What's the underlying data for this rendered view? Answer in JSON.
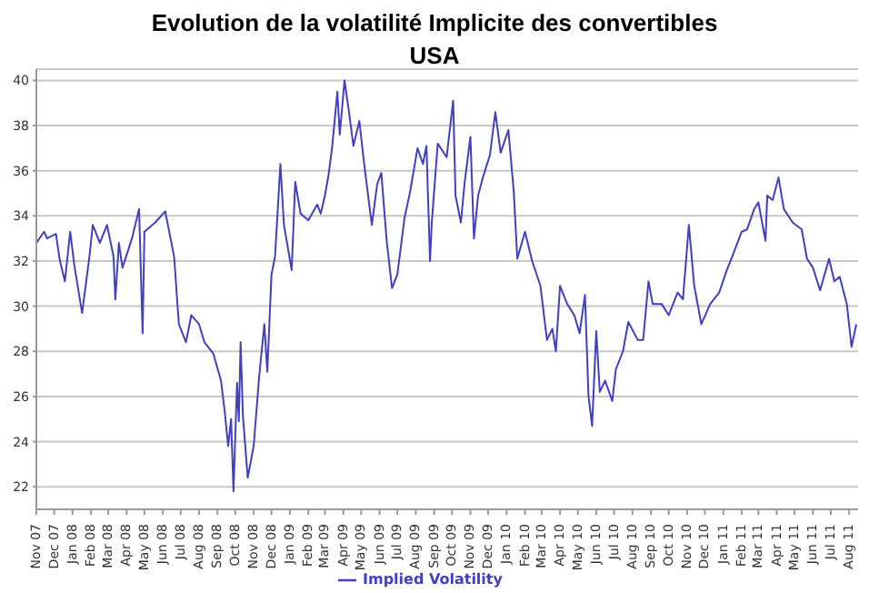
{
  "chart_data": {
    "type": "line",
    "title": "Evolution de la volatilité Implicite des convertibles",
    "subtitle": "USA",
    "xlim": [
      "2007-11-01",
      "2011-08-16"
    ],
    "ylim": [
      21,
      40.5
    ],
    "yticks": [
      22,
      24,
      26,
      28,
      30,
      32,
      34,
      36,
      38,
      40
    ],
    "xticks": [
      {
        "value": "2007-11-01",
        "label": "Nov 07"
      },
      {
        "value": "2007-12-01",
        "label": "Dec 07"
      },
      {
        "value": "2008-01-01",
        "label": "Jan 08"
      },
      {
        "value": "2008-02-01",
        "label": "Feb 08"
      },
      {
        "value": "2008-03-01",
        "label": "Mar 08"
      },
      {
        "value": "2008-04-01",
        "label": "Apr 08"
      },
      {
        "value": "2008-05-01",
        "label": "May 08"
      },
      {
        "value": "2008-06-01",
        "label": "Jun 08"
      },
      {
        "value": "2008-07-01",
        "label": "Jul 08"
      },
      {
        "value": "2008-08-01",
        "label": "Aug 08"
      },
      {
        "value": "2008-09-01",
        "label": "Sep 08"
      },
      {
        "value": "2008-10-01",
        "label": "Oct 08"
      },
      {
        "value": "2008-11-01",
        "label": "Nov 08"
      },
      {
        "value": "2008-12-01",
        "label": "Dec 08"
      },
      {
        "value": "2009-01-01",
        "label": "Jan 09"
      },
      {
        "value": "2009-02-01",
        "label": "Feb 09"
      },
      {
        "value": "2009-03-01",
        "label": "Mar 09"
      },
      {
        "value": "2009-04-01",
        "label": "Apr 09"
      },
      {
        "value": "2009-05-01",
        "label": "May 09"
      },
      {
        "value": "2009-06-01",
        "label": "Jun 09"
      },
      {
        "value": "2009-07-01",
        "label": "Jul 09"
      },
      {
        "value": "2009-08-01",
        "label": "Aug 09"
      },
      {
        "value": "2009-09-01",
        "label": "Sep 09"
      },
      {
        "value": "2009-10-01",
        "label": "Oct 09"
      },
      {
        "value": "2009-11-01",
        "label": "Nov 09"
      },
      {
        "value": "2009-12-01",
        "label": "Dec 09"
      },
      {
        "value": "2010-01-01",
        "label": "Jan 10"
      },
      {
        "value": "2010-02-01",
        "label": "Feb 10"
      },
      {
        "value": "2010-03-01",
        "label": "Mar 10"
      },
      {
        "value": "2010-04-01",
        "label": "Apr 10"
      },
      {
        "value": "2010-05-01",
        "label": "May 10"
      },
      {
        "value": "2010-06-01",
        "label": "Jun 10"
      },
      {
        "value": "2010-07-01",
        "label": "Jul 10"
      },
      {
        "value": "2010-08-01",
        "label": "Aug 10"
      },
      {
        "value": "2010-09-01",
        "label": "Sep 10"
      },
      {
        "value": "2010-10-01",
        "label": "Oct 10"
      },
      {
        "value": "2010-11-01",
        "label": "Nov 10"
      },
      {
        "value": "2010-12-01",
        "label": "Dec 10"
      },
      {
        "value": "2011-01-01",
        "label": "Jan 11"
      },
      {
        "value": "2011-02-01",
        "label": "Feb 11"
      },
      {
        "value": "2011-03-01",
        "label": "Mar 11"
      },
      {
        "value": "2011-04-01",
        "label": "Apr 11"
      },
      {
        "value": "2011-05-01",
        "label": "May 11"
      },
      {
        "value": "2011-06-01",
        "label": "Jun 11"
      },
      {
        "value": "2011-07-01",
        "label": "Jul 11"
      },
      {
        "value": "2011-08-01",
        "label": "Aug 11"
      }
    ],
    "grid": "y",
    "legend": "bottom",
    "marker": "none",
    "line_style": "solid",
    "series": [
      {
        "name": "Implied Volatility",
        "color": "#4040c0",
        "x": [
          "2007-11-01",
          "2007-11-14",
          "2007-11-19",
          "2007-12-04",
          "2007-12-10",
          "2007-12-19",
          "2007-12-28",
          "2008-01-04",
          "2008-01-17",
          "2008-01-29",
          "2008-02-04",
          "2008-02-16",
          "2008-02-28",
          "2008-03-10",
          "2008-03-13",
          "2008-03-19",
          "2008-03-25",
          "2008-04-10",
          "2008-04-22",
          "2008-04-28",
          "2008-05-01",
          "2008-05-19",
          "2008-06-05",
          "2008-06-20",
          "2008-06-28",
          "2008-07-01",
          "2008-07-10",
          "2008-07-19",
          "2008-08-01",
          "2008-08-10",
          "2008-08-25",
          "2008-09-07",
          "2008-09-13",
          "2008-09-19",
          "2008-09-24",
          "2008-09-28",
          "2008-10-04",
          "2008-10-07",
          "2008-10-10",
          "2008-10-14",
          "2008-10-22",
          "2008-11-01",
          "2008-11-10",
          "2008-11-19",
          "2008-11-24",
          "2008-12-01",
          "2008-12-07",
          "2008-12-16",
          "2008-12-22",
          "2009-01-04",
          "2009-01-10",
          "2009-01-19",
          "2009-02-01",
          "2009-02-16",
          "2009-02-22",
          "2009-03-01",
          "2009-03-07",
          "2009-03-13",
          "2009-03-22",
          "2009-03-26",
          "2009-04-03",
          "2009-04-10",
          "2009-04-18",
          "2009-04-28",
          "2009-05-07",
          "2009-05-19",
          "2009-05-28",
          "2009-06-04",
          "2009-06-13",
          "2009-06-22",
          "2009-07-01",
          "2009-07-13",
          "2009-07-22",
          "2009-08-04",
          "2009-08-13",
          "2009-08-19",
          "2009-08-25",
          "2009-08-28",
          "2009-09-07",
          "2009-09-22",
          "2009-10-03",
          "2009-10-07",
          "2009-10-16",
          "2009-10-22",
          "2009-11-01",
          "2009-11-07",
          "2009-11-14",
          "2009-11-22",
          "2009-12-04",
          "2009-12-13",
          "2009-12-22",
          "2010-01-04",
          "2010-01-13",
          "2010-01-19",
          "2010-02-01",
          "2010-02-13",
          "2010-02-27",
          "2010-03-10",
          "2010-03-19",
          "2010-03-25",
          "2010-04-01",
          "2010-04-13",
          "2010-04-25",
          "2010-05-04",
          "2010-05-13",
          "2010-05-19",
          "2010-05-25",
          "2010-06-01",
          "2010-06-07",
          "2010-06-16",
          "2010-06-28",
          "2010-07-04",
          "2010-07-16",
          "2010-07-25",
          "2010-08-10",
          "2010-08-19",
          "2010-08-28",
          "2010-09-04",
          "2010-09-19",
          "2010-10-01",
          "2010-10-16",
          "2010-10-25",
          "2010-11-04",
          "2010-11-13",
          "2010-11-25",
          "2010-12-10",
          "2010-12-25",
          "2011-01-07",
          "2011-01-16",
          "2011-02-01",
          "2011-02-10",
          "2011-02-22",
          "2011-03-01",
          "2011-03-13",
          "2011-03-16",
          "2011-03-25",
          "2011-04-04",
          "2011-04-13",
          "2011-04-28",
          "2011-05-13",
          "2011-05-22",
          "2011-06-01",
          "2011-06-13",
          "2011-06-28",
          "2011-07-07",
          "2011-07-16",
          "2011-07-28",
          "2011-08-05",
          "2011-08-13"
        ],
        "values": [
          32.8,
          33.3,
          33.0,
          33.2,
          32.1,
          31.1,
          33.3,
          31.8,
          29.7,
          32.1,
          33.6,
          32.8,
          33.6,
          32.2,
          30.3,
          32.8,
          31.7,
          33.0,
          34.3,
          28.8,
          33.3,
          33.7,
          34.2,
          32.2,
          29.2,
          29.0,
          28.4,
          29.6,
          29.2,
          28.4,
          27.9,
          26.7,
          25.4,
          23.8,
          25.0,
          21.8,
          26.6,
          24.9,
          28.4,
          25.1,
          22.4,
          23.8,
          26.8,
          29.2,
          27.1,
          31.4,
          32.2,
          36.3,
          33.6,
          31.6,
          35.5,
          34.1,
          33.8,
          34.5,
          34.1,
          34.9,
          35.8,
          37.0,
          39.5,
          37.6,
          40.0,
          38.7,
          37.1,
          38.2,
          36.1,
          33.6,
          35.4,
          35.9,
          32.9,
          30.8,
          31.4,
          33.9,
          35.0,
          37.0,
          36.3,
          37.1,
          32.0,
          33.7,
          37.2,
          36.6,
          39.1,
          34.9,
          33.7,
          35.4,
          37.5,
          33.0,
          34.9,
          35.7,
          36.7,
          38.6,
          36.8,
          37.8,
          35.1,
          32.1,
          33.3,
          32.0,
          30.9,
          28.5,
          29.0,
          28.0,
          30.9,
          30.1,
          29.6,
          28.8,
          30.5,
          26.0,
          24.7,
          28.9,
          26.2,
          26.7,
          25.8,
          27.2,
          28.0,
          29.3,
          28.5,
          28.5,
          31.1,
          30.1,
          30.1,
          29.6,
          30.6,
          30.3,
          33.6,
          30.9,
          29.2,
          30.1,
          30.6,
          31.6,
          32.2,
          33.3,
          33.4,
          34.3,
          34.6,
          32.9,
          34.9,
          34.7,
          35.7,
          34.3,
          33.7,
          33.4,
          32.1,
          31.7,
          30.7,
          32.1,
          31.1,
          31.3,
          30.1,
          28.2,
          29.2
        ]
      }
    ]
  }
}
